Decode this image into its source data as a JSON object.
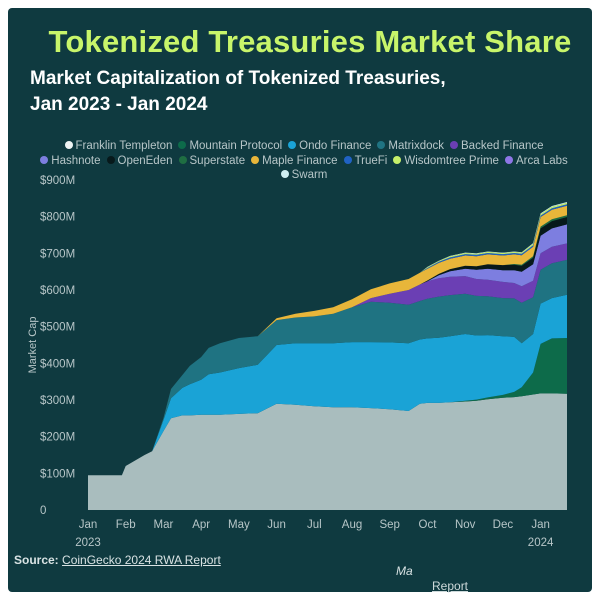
{
  "title": "Tokenized Treasuries Market Share",
  "subtitle_line1": "Market Capitalization of Tokenized Treasuries,",
  "subtitle_line2": "Jan 2023 - Jan 2024",
  "legend": [
    {
      "name": "Franklin Templeton",
      "color": "#eef3f3"
    },
    {
      "name": "Mountain Protocol",
      "color": "#0d6b4a"
    },
    {
      "name": "Ondo Finance",
      "color": "#1aa3d6"
    },
    {
      "name": "Matrixdock",
      "color": "#1f7382"
    },
    {
      "name": "Backed Finance",
      "color": "#6b3fb4"
    },
    {
      "name": "Hashnote",
      "color": "#7d7ee0"
    },
    {
      "name": "OpenEden",
      "color": "#07191b"
    },
    {
      "name": "Superstate",
      "color": "#1f6e42"
    },
    {
      "name": "Maple Finance",
      "color": "#e8b63a"
    },
    {
      "name": "TrueFi",
      "color": "#2062c4"
    },
    {
      "name": "Wisdomtree Prime",
      "color": "#c6ef6a"
    },
    {
      "name": "Arca Labs",
      "color": "#8e76e6"
    },
    {
      "name": "Swarm",
      "color": "#cfeff2"
    }
  ],
  "footer": {
    "label": "Source:",
    "link": "CoinGecko 2024 RWA Report"
  },
  "watermark": "Ma",
  "report_link": "Report",
  "chart_data": {
    "type": "area",
    "stacked": true,
    "title": "Tokenized Treasuries Market Share",
    "ylabel": "Market Cap",
    "ylim": [
      0,
      900
    ],
    "yticks": [
      "$900M",
      "$800M",
      "$700M",
      "$600M",
      "$500M",
      "$400M",
      "$300M",
      "$200M",
      "$100M",
      "0"
    ],
    "xticks": [
      "Jan",
      "Feb",
      "Mar",
      "Apr",
      "May",
      "Jun",
      "Jul",
      "Aug",
      "Sep",
      "Oct",
      "Nov",
      "Dec",
      "Jan"
    ],
    "xticks_year": [
      "2023",
      "2024"
    ],
    "x": [
      0,
      0.5,
      0.9,
      1.0,
      1.5,
      1.7,
      2.0,
      2.2,
      2.5,
      2.7,
      3.0,
      3.2,
      3.5,
      4.0,
      4.5,
      5.0,
      5.5,
      6.0,
      6.5,
      7.0,
      7.5,
      8.0,
      8.5,
      8.8,
      9.0,
      9.3,
      9.6,
      10.0,
      10.3,
      10.6,
      11.0,
      11.3,
      11.5,
      11.8,
      12.0,
      12.3,
      12.7
    ],
    "series": [
      {
        "name": "Franklin Templeton",
        "color": "#a9bdbe",
        "values": [
          95,
          95,
          95,
          120,
          150,
          160,
          215,
          250,
          258,
          258,
          260,
          260,
          260,
          262,
          264,
          290,
          287,
          283,
          280,
          280,
          278,
          275,
          270,
          290,
          292,
          292,
          294,
          296,
          298,
          302,
          306,
          308,
          310,
          315,
          318,
          318,
          317
        ]
      },
      {
        "name": "Mountain Protocol",
        "color": "#0d6b4a",
        "values": [
          0,
          0,
          0,
          0,
          0,
          0,
          0,
          0,
          0,
          0,
          0,
          0,
          0,
          0,
          0,
          0,
          0,
          0,
          0,
          0,
          0,
          0,
          0,
          0,
          0,
          0,
          0,
          2,
          3,
          5,
          8,
          14,
          25,
          60,
          135,
          150,
          152
        ]
      },
      {
        "name": "Ondo Finance",
        "color": "#1aa3d6",
        "values": [
          0,
          0,
          0,
          0,
          0,
          0,
          30,
          55,
          75,
          85,
          95,
          110,
          115,
          125,
          132,
          160,
          168,
          172,
          175,
          178,
          180,
          182,
          185,
          175,
          176,
          178,
          180,
          182,
          175,
          170,
          160,
          150,
          120,
          105,
          110,
          110,
          118
        ]
      },
      {
        "name": "Matrixdock",
        "color": "#1f7382",
        "values": [
          0,
          0,
          0,
          0,
          0,
          0,
          5,
          25,
          35,
          50,
          62,
          72,
          80,
          82,
          78,
          68,
          70,
          73,
          80,
          95,
          110,
          108,
          105,
          105,
          108,
          112,
          112,
          110,
          108,
          106,
          104,
          105,
          110,
          100,
          92,
          95,
          95
        ]
      },
      {
        "name": "Backed Finance",
        "color": "#6b3fb4",
        "values": [
          0,
          0,
          0,
          0,
          0,
          0,
          0,
          0,
          0,
          0,
          0,
          0,
          0,
          0,
          0,
          0,
          0,
          0,
          0,
          0,
          10,
          25,
          40,
          45,
          48,
          50,
          50,
          48,
          46,
          45,
          44,
          42,
          45,
          45,
          45,
          45,
          45
        ]
      },
      {
        "name": "Hashnote",
        "color": "#7d7ee0",
        "values": [
          0,
          0,
          0,
          0,
          0,
          0,
          0,
          0,
          0,
          0,
          0,
          0,
          0,
          0,
          0,
          0,
          0,
          0,
          0,
          0,
          0,
          0,
          0,
          0,
          0,
          8,
          15,
          20,
          25,
          30,
          32,
          35,
          40,
          45,
          48,
          50,
          52
        ]
      },
      {
        "name": "OpenEden",
        "color": "#07191b",
        "values": [
          0,
          0,
          0,
          0,
          0,
          0,
          0,
          0,
          0,
          0,
          0,
          0,
          0,
          0,
          0,
          0,
          0,
          0,
          0,
          0,
          0,
          0,
          0,
          0,
          2,
          4,
          6,
          8,
          10,
          12,
          14,
          15,
          16,
          18,
          20,
          20,
          20
        ]
      },
      {
        "name": "Superstate",
        "color": "#1f6e42",
        "values": [
          0,
          0,
          0,
          0,
          0,
          0,
          0,
          0,
          0,
          0,
          0,
          0,
          0,
          0,
          0,
          0,
          0,
          0,
          0,
          0,
          0,
          0,
          0,
          0,
          0,
          0,
          0,
          0,
          0,
          0,
          0,
          2,
          3,
          4,
          5,
          5,
          5
        ]
      },
      {
        "name": "Maple Finance",
        "color": "#e8b63a",
        "values": [
          0,
          0,
          0,
          0,
          0,
          0,
          0,
          0,
          0,
          0,
          0,
          0,
          0,
          0,
          0,
          5,
          10,
          15,
          18,
          22,
          24,
          28,
          30,
          32,
          32,
          30,
          28,
          28,
          27,
          27,
          26,
          26,
          26,
          26,
          26,
          26,
          26
        ]
      },
      {
        "name": "TrueFi",
        "color": "#2062c4",
        "values": [
          0,
          0,
          0,
          0,
          0,
          0,
          0,
          0,
          0,
          0,
          0,
          0,
          0,
          0,
          0,
          0,
          0,
          0,
          0,
          0,
          0,
          0,
          0,
          0,
          2,
          3,
          4,
          4,
          4,
          4,
          4,
          4,
          4,
          4,
          4,
          4,
          4
        ]
      },
      {
        "name": "Wisdomtree Prime",
        "color": "#c6ef6a",
        "values": [
          0,
          0,
          0,
          0,
          0,
          0,
          0,
          0,
          0,
          0,
          0,
          0,
          0,
          0,
          0,
          0,
          0,
          0,
          0,
          0,
          0,
          0,
          0,
          0,
          2,
          2,
          3,
          3,
          3,
          3,
          3,
          3,
          3,
          4,
          4,
          4,
          4
        ]
      },
      {
        "name": "Arca Labs",
        "color": "#8e76e6",
        "values": [
          0,
          0,
          0,
          0,
          0,
          0,
          0,
          0,
          0,
          0,
          0,
          0,
          0,
          0,
          0,
          0,
          0,
          0,
          0,
          0,
          0,
          0,
          0,
          0,
          0,
          0,
          0,
          0,
          0,
          0,
          0,
          0,
          0,
          0,
          0,
          0,
          0
        ]
      },
      {
        "name": "Swarm",
        "color": "#cfeff2",
        "values": [
          0,
          0,
          0,
          0,
          0,
          0,
          0,
          0,
          0,
          0,
          0,
          0,
          0,
          0,
          0,
          0,
          0,
          0,
          0,
          0,
          0,
          0,
          0,
          0,
          1,
          1,
          1,
          1,
          1,
          1,
          1,
          1,
          1,
          2,
          2,
          2,
          2
        ]
      }
    ]
  }
}
